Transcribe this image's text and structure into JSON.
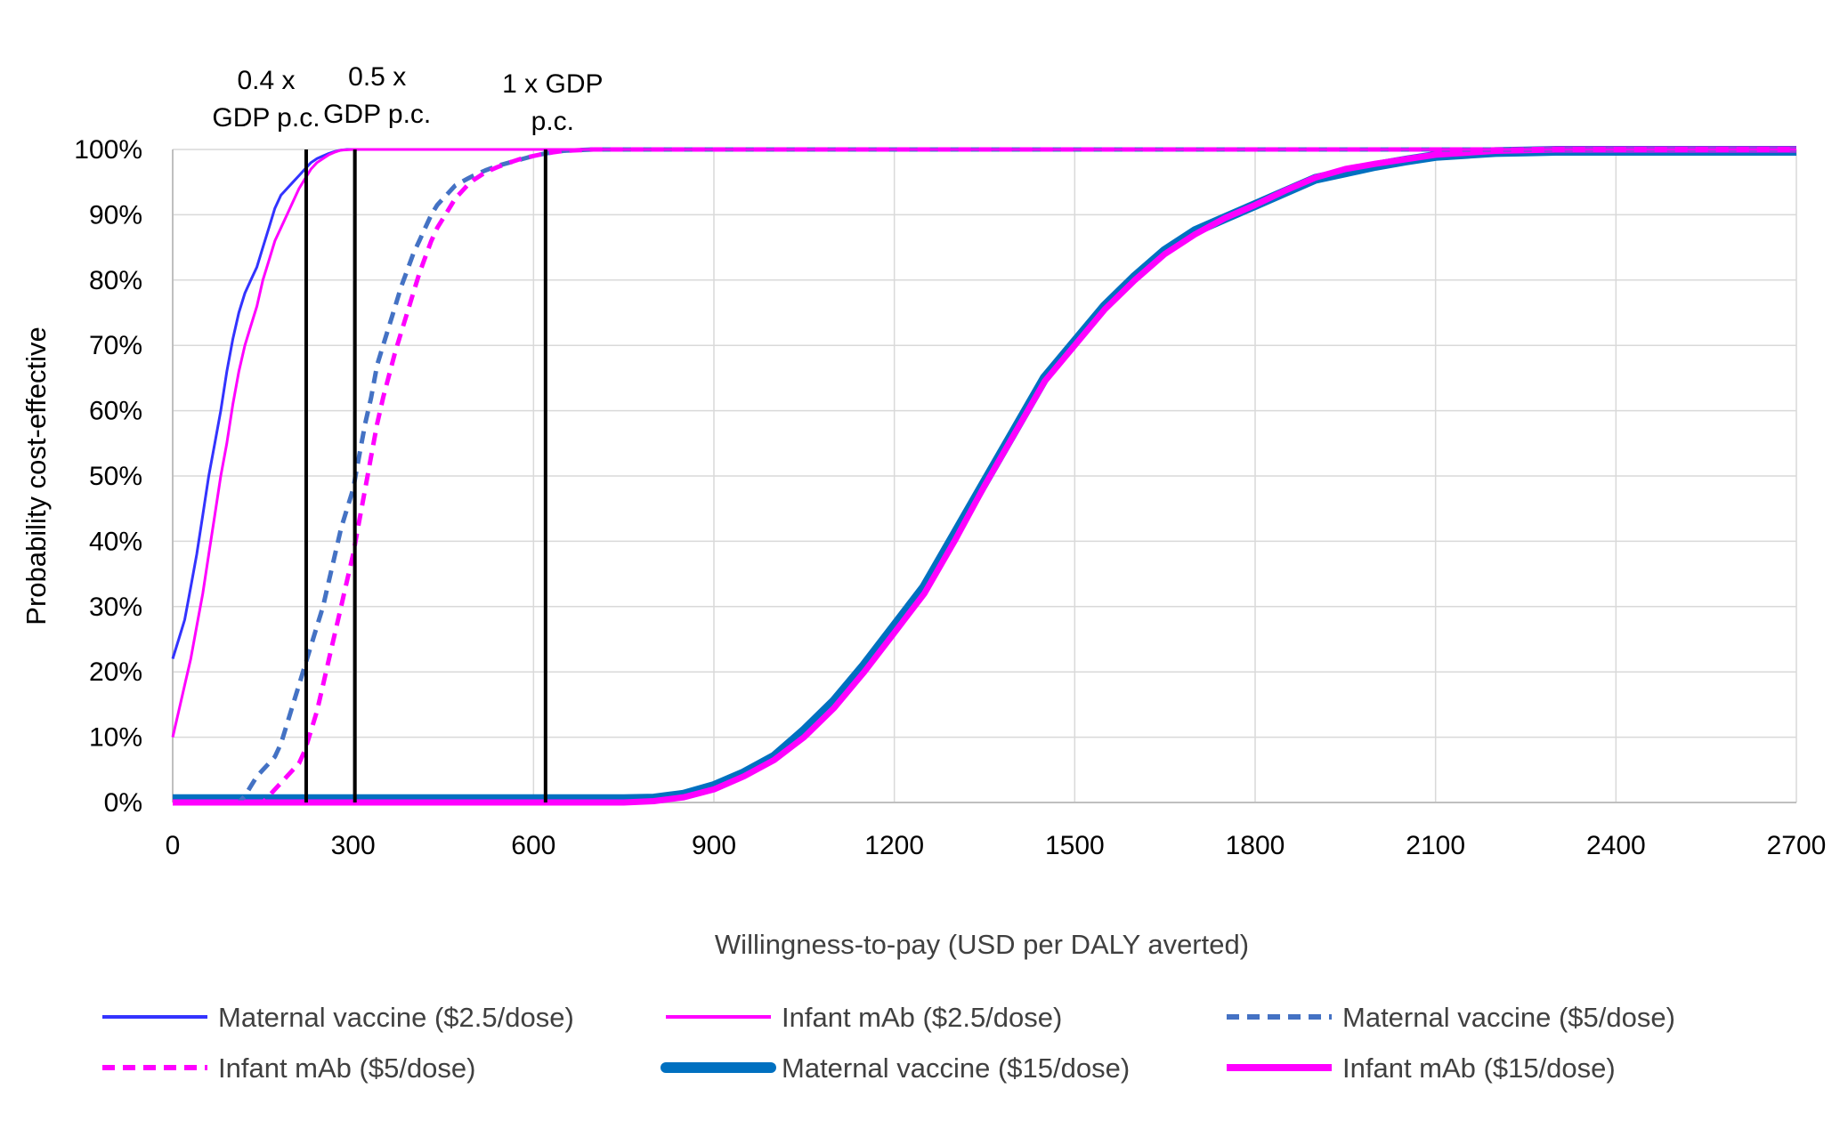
{
  "chart_data": {
    "type": "line",
    "title": "",
    "xlabel": "Willingness-to-pay (USD per DALY averted)",
    "ylabel": "Probability cost-effective",
    "xlim": [
      0,
      2700
    ],
    "ylim": [
      0,
      100
    ],
    "x_ticks": [
      0,
      300,
      600,
      900,
      1200,
      1500,
      1800,
      2100,
      2400,
      2700
    ],
    "x_tick_labels": [
      "0",
      "300",
      "600",
      "900",
      "1200",
      "1500",
      "1800",
      "2100",
      "2400",
      "2700"
    ],
    "y_ticks": [
      0,
      10,
      20,
      30,
      40,
      50,
      60,
      70,
      80,
      90,
      100
    ],
    "y_tick_labels": [
      "0%",
      "10%",
      "20%",
      "30%",
      "40%",
      "50%",
      "60%",
      "70%",
      "80%",
      "90%",
      "100%"
    ],
    "grid": true,
    "legend_position": "bottom",
    "reference_lines": [
      {
        "x": 222,
        "label_lines": [
          "0.4 x",
          "GDP p.c."
        ]
      },
      {
        "x": 303,
        "label_lines": [
          "0.5 x",
          "GDP p.c."
        ]
      },
      {
        "x": 620,
        "label_lines": [
          "1 x GDP",
          "p.c."
        ]
      }
    ],
    "series": [
      {
        "name": "Maternal vaccine ($2.5/dose)",
        "color": "#3333ff",
        "style": "solid",
        "weight": "thin",
        "points": [
          [
            0,
            22
          ],
          [
            10,
            25
          ],
          [
            20,
            28
          ],
          [
            30,
            33
          ],
          [
            40,
            38
          ],
          [
            50,
            44
          ],
          [
            60,
            50
          ],
          [
            70,
            55
          ],
          [
            80,
            60
          ],
          [
            90,
            66
          ],
          [
            100,
            71
          ],
          [
            110,
            75
          ],
          [
            120,
            78
          ],
          [
            130,
            80
          ],
          [
            140,
            82
          ],
          [
            150,
            85
          ],
          [
            160,
            88
          ],
          [
            170,
            91
          ],
          [
            180,
            93
          ],
          [
            190,
            94
          ],
          [
            200,
            95
          ],
          [
            210,
            96
          ],
          [
            220,
            97
          ],
          [
            230,
            98
          ],
          [
            240,
            98.6
          ],
          [
            250,
            99
          ],
          [
            260,
            99.4
          ],
          [
            270,
            99.7
          ],
          [
            280,
            99.9
          ],
          [
            290,
            100
          ],
          [
            2700,
            100
          ]
        ]
      },
      {
        "name": "Infant mAb ($2.5/dose)",
        "color": "#ff00ff",
        "style": "solid",
        "weight": "thin",
        "points": [
          [
            0,
            10
          ],
          [
            10,
            14
          ],
          [
            20,
            18
          ],
          [
            30,
            22
          ],
          [
            40,
            27
          ],
          [
            50,
            32
          ],
          [
            60,
            38
          ],
          [
            70,
            44
          ],
          [
            80,
            50
          ],
          [
            90,
            55
          ],
          [
            100,
            61
          ],
          [
            110,
            66
          ],
          [
            120,
            70
          ],
          [
            130,
            73
          ],
          [
            140,
            76
          ],
          [
            150,
            80
          ],
          [
            160,
            83
          ],
          [
            170,
            86
          ],
          [
            180,
            88
          ],
          [
            190,
            90
          ],
          [
            200,
            92
          ],
          [
            210,
            94
          ],
          [
            220,
            95.5
          ],
          [
            230,
            97
          ],
          [
            240,
            98
          ],
          [
            250,
            98.6
          ],
          [
            260,
            99.2
          ],
          [
            270,
            99.6
          ],
          [
            280,
            99.9
          ],
          [
            300,
            100
          ],
          [
            2700,
            100
          ]
        ]
      },
      {
        "name": "Maternal vaccine ($5/dose)",
        "color": "#4472c4",
        "style": "dashed",
        "weight": "medium",
        "points": [
          [
            0,
            0
          ],
          [
            110,
            0
          ],
          [
            120,
            1
          ],
          [
            130,
            2.5
          ],
          [
            140,
            4
          ],
          [
            150,
            5
          ],
          [
            160,
            6
          ],
          [
            170,
            7
          ],
          [
            180,
            9
          ],
          [
            190,
            12
          ],
          [
            200,
            15
          ],
          [
            210,
            18
          ],
          [
            220,
            21
          ],
          [
            230,
            24
          ],
          [
            240,
            27
          ],
          [
            250,
            30
          ],
          [
            260,
            34
          ],
          [
            270,
            38
          ],
          [
            280,
            42
          ],
          [
            290,
            45
          ],
          [
            300,
            48
          ],
          [
            310,
            53
          ],
          [
            320,
            58
          ],
          [
            330,
            62
          ],
          [
            340,
            67
          ],
          [
            350,
            70
          ],
          [
            360,
            73
          ],
          [
            370,
            76
          ],
          [
            380,
            79
          ],
          [
            390,
            81.5
          ],
          [
            400,
            84
          ],
          [
            410,
            86
          ],
          [
            420,
            88
          ],
          [
            430,
            90
          ],
          [
            440,
            91.5
          ],
          [
            450,
            92.5
          ],
          [
            460,
            93.5
          ],
          [
            470,
            94.5
          ],
          [
            480,
            95
          ],
          [
            490,
            95.5
          ],
          [
            500,
            96
          ],
          [
            520,
            96.8
          ],
          [
            540,
            97.5
          ],
          [
            560,
            98
          ],
          [
            580,
            98.5
          ],
          [
            600,
            99
          ],
          [
            620,
            99.4
          ],
          [
            650,
            99.8
          ],
          [
            700,
            100
          ],
          [
            2700,
            100
          ]
        ]
      },
      {
        "name": "Infant mAb ($5/dose)",
        "color": "#ff00ff",
        "style": "dashed",
        "weight": "medium",
        "points": [
          [
            0,
            0
          ],
          [
            150,
            0
          ],
          [
            160,
            1
          ],
          [
            170,
            2
          ],
          [
            180,
            3
          ],
          [
            190,
            4
          ],
          [
            200,
            5
          ],
          [
            210,
            6
          ],
          [
            220,
            8
          ],
          [
            230,
            11
          ],
          [
            240,
            14
          ],
          [
            250,
            18
          ],
          [
            260,
            22
          ],
          [
            270,
            26
          ],
          [
            280,
            30
          ],
          [
            290,
            34
          ],
          [
            300,
            38
          ],
          [
            310,
            43
          ],
          [
            320,
            48
          ],
          [
            330,
            53
          ],
          [
            340,
            58
          ],
          [
            350,
            62
          ],
          [
            360,
            65.5
          ],
          [
            370,
            69
          ],
          [
            380,
            72
          ],
          [
            390,
            75
          ],
          [
            400,
            78
          ],
          [
            410,
            81
          ],
          [
            420,
            83.5
          ],
          [
            430,
            86
          ],
          [
            440,
            88
          ],
          [
            450,
            89.5
          ],
          [
            460,
            91
          ],
          [
            470,
            92.5
          ],
          [
            480,
            93.5
          ],
          [
            490,
            94.5
          ],
          [
            500,
            95.3
          ],
          [
            520,
            96.5
          ],
          [
            540,
            97.3
          ],
          [
            560,
            98
          ],
          [
            580,
            98.6
          ],
          [
            600,
            99
          ],
          [
            620,
            99.4
          ],
          [
            650,
            99.8
          ],
          [
            700,
            100
          ],
          [
            2700,
            100
          ]
        ]
      },
      {
        "name": "Maternal vaccine ($15/dose)",
        "color": "#0070c0",
        "style": "solid",
        "weight": "thick",
        "points": [
          [
            0,
            0.5
          ],
          [
            750,
            0.5
          ],
          [
            800,
            0.6
          ],
          [
            850,
            1.2
          ],
          [
            900,
            2.5
          ],
          [
            950,
            4.5
          ],
          [
            1000,
            7
          ],
          [
            1050,
            11
          ],
          [
            1100,
            15.5
          ],
          [
            1150,
            21
          ],
          [
            1200,
            27
          ],
          [
            1250,
            33
          ],
          [
            1300,
            41
          ],
          [
            1350,
            49
          ],
          [
            1400,
            57
          ],
          [
            1450,
            65
          ],
          [
            1500,
            70.5
          ],
          [
            1550,
            76
          ],
          [
            1600,
            80.5
          ],
          [
            1650,
            84.5
          ],
          [
            1700,
            87.5
          ],
          [
            1750,
            89.5
          ],
          [
            1800,
            91.5
          ],
          [
            1850,
            93.5
          ],
          [
            1900,
            95.5
          ],
          [
            1950,
            96.5
          ],
          [
            2000,
            97.5
          ],
          [
            2050,
            98.3
          ],
          [
            2100,
            99
          ],
          [
            2150,
            99.3
          ],
          [
            2200,
            99.6
          ],
          [
            2250,
            99.7
          ],
          [
            2300,
            99.8
          ],
          [
            2700,
            99.8
          ]
        ]
      },
      {
        "name": "Infant mAb ($15/dose)",
        "color": "#ff00ff",
        "style": "solid",
        "weight": "thick-medium",
        "points": [
          [
            0,
            0
          ],
          [
            750,
            0
          ],
          [
            800,
            0.2
          ],
          [
            850,
            0.8
          ],
          [
            900,
            2
          ],
          [
            950,
            4
          ],
          [
            1000,
            6.5
          ],
          [
            1050,
            10
          ],
          [
            1100,
            14.5
          ],
          [
            1150,
            20
          ],
          [
            1200,
            26
          ],
          [
            1250,
            32
          ],
          [
            1300,
            40
          ],
          [
            1350,
            48.5
          ],
          [
            1400,
            56.5
          ],
          [
            1450,
            64.5
          ],
          [
            1500,
            70
          ],
          [
            1550,
            75.5
          ],
          [
            1600,
            80
          ],
          [
            1650,
            84
          ],
          [
            1700,
            87
          ],
          [
            1750,
            89.5
          ],
          [
            1800,
            91.5
          ],
          [
            1850,
            93.7
          ],
          [
            1900,
            95.7
          ],
          [
            1950,
            97
          ],
          [
            2000,
            97.8
          ],
          [
            2050,
            98.5
          ],
          [
            2100,
            99.2
          ],
          [
            2150,
            99.5
          ],
          [
            2200,
            99.8
          ],
          [
            2300,
            100
          ],
          [
            2700,
            100
          ]
        ]
      }
    ]
  }
}
